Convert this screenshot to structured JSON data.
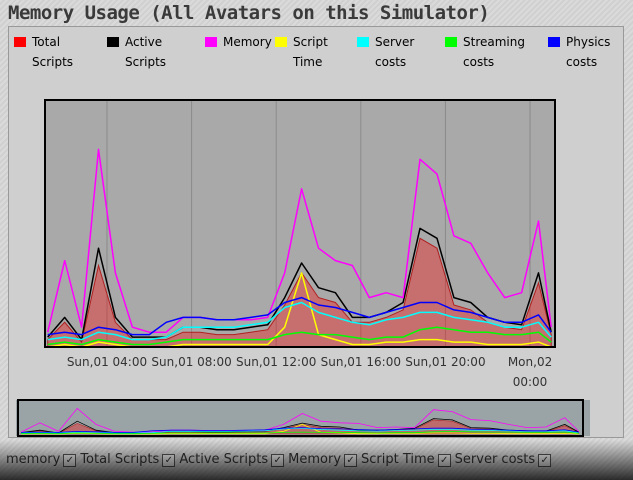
{
  "chart_data": {
    "type": "line",
    "title": "Memory Usage (All Avatars on this Simulator)",
    "x": [
      1.2,
      2.0,
      2.8,
      3.6,
      4.4,
      5.2,
      6.0,
      6.8,
      7.6,
      8.4,
      9.2,
      10.0,
      10.8,
      11.6,
      12.4,
      13.2,
      14.0,
      14.8,
      15.6,
      16.4,
      17.2,
      18.0,
      18.8,
      19.6,
      20.4,
      21.2,
      22.0,
      22.8,
      23.6,
      24.4,
      25.0
    ],
    "xlim": [
      1.07,
      25.18
    ],
    "xticks": [
      {
        "value": 4,
        "label": "Sun,01 04:00"
      },
      {
        "value": 8,
        "label": "Sun,01 08:00"
      },
      {
        "value": 12,
        "label": "Sun,01 12:00"
      },
      {
        "value": 16,
        "label": "Sun,01 16:00"
      },
      {
        "value": 20,
        "label": "Sun,01 20:00"
      },
      {
        "value": 24,
        "label": "Mon,02 00:00"
      }
    ],
    "ylim": [
      0,
      100
    ],
    "grid": true,
    "series": [
      {
        "name": "Total Scripts",
        "color": "#ff0000",
        "area": true,
        "values": [
          3,
          10,
          2,
          33,
          10,
          3,
          3,
          3,
          6,
          6,
          5,
          5,
          6,
          7,
          17,
          30,
          20,
          18,
          10,
          10,
          12,
          15,
          44,
          40,
          17,
          15,
          10,
          8,
          7,
          26,
          5
        ]
      },
      {
        "name": "Active Scripts",
        "color": "#000000",
        "values": [
          4,
          12,
          3,
          40,
          12,
          4,
          4,
          4,
          8,
          8,
          7,
          7,
          8,
          9,
          20,
          34,
          24,
          22,
          12,
          12,
          14,
          18,
          48,
          44,
          20,
          18,
          12,
          10,
          9,
          30,
          6
        ]
      },
      {
        "name": "Memory",
        "color": "#ff00ff",
        "values": [
          6,
          35,
          8,
          80,
          30,
          8,
          6,
          6,
          12,
          12,
          11,
          11,
          11,
          12,
          30,
          64,
          40,
          35,
          33,
          20,
          22,
          20,
          76,
          70,
          45,
          42,
          30,
          20,
          22,
          51,
          8
        ]
      },
      {
        "name": "Script Time",
        "color": "#ffff00",
        "values": [
          0,
          1,
          0,
          2,
          1,
          0,
          0,
          0,
          1,
          1,
          1,
          1,
          1,
          1,
          8,
          30,
          5,
          3,
          1,
          1,
          2,
          2,
          3,
          3,
          2,
          2,
          1,
          1,
          1,
          2,
          0
        ]
      },
      {
        "name": "Server costs",
        "color": "#00ffff",
        "values": [
          3,
          4,
          3,
          6,
          5,
          3,
          3,
          4,
          8,
          8,
          8,
          8,
          9,
          10,
          16,
          18,
          14,
          12,
          10,
          9,
          11,
          12,
          14,
          14,
          12,
          11,
          10,
          8,
          8,
          10,
          4
        ]
      },
      {
        "name": "Streaming costs",
        "color": "#00ff00",
        "values": [
          1,
          2,
          1,
          3,
          2,
          1,
          1,
          2,
          3,
          3,
          3,
          3,
          3,
          3,
          5,
          6,
          5,
          5,
          4,
          3,
          4,
          4,
          7,
          8,
          7,
          6,
          6,
          5,
          5,
          6,
          2
        ]
      },
      {
        "name": "Physics costs",
        "color": "#0000ff",
        "values": [
          5,
          6,
          5,
          8,
          7,
          5,
          5,
          10,
          12,
          12,
          11,
          11,
          12,
          13,
          18,
          20,
          17,
          16,
          14,
          12,
          14,
          16,
          18,
          18,
          15,
          14,
          12,
          10,
          10,
          13,
          6
        ]
      }
    ],
    "toggles": [
      "memory",
      "Total Scripts",
      "Active Scripts",
      "Memory",
      "Script Time",
      "Server costs"
    ]
  }
}
